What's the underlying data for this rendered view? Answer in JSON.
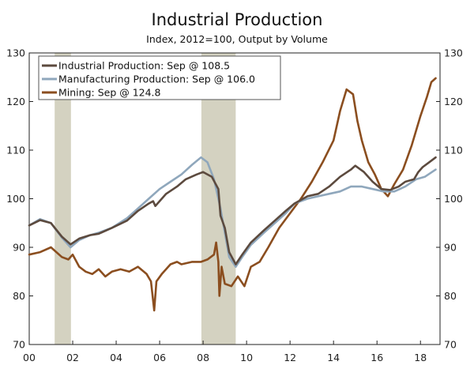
{
  "chart_data": {
    "type": "line",
    "title": "Industrial Production",
    "subtitle": "Index, 2012=100, Output by Volume",
    "xlabel": "",
    "ylabel": "",
    "xlim": [
      2000.0,
      2018.9
    ],
    "ylim": [
      70,
      130
    ],
    "x_ticks": [
      2000,
      2002,
      2004,
      2006,
      2008,
      2010,
      2012,
      2014,
      2016,
      2018
    ],
    "x_tick_labels": [
      "00",
      "02",
      "04",
      "06",
      "08",
      "10",
      "12",
      "14",
      "16",
      "18"
    ],
    "y_ticks": [
      70,
      80,
      90,
      100,
      110,
      120,
      130
    ],
    "y_tick_labels": [
      "70",
      "80",
      "90",
      "100",
      "110",
      "120",
      "130"
    ],
    "right_axis": true,
    "grid": false,
    "legend_position": "top-left",
    "recessions": [
      [
        2001.17,
        2001.92
      ],
      [
        2007.92,
        2009.5
      ]
    ],
    "recession_color": "#d4d2c1",
    "series": [
      {
        "name": "Industrial Production: Sep @ 108.5",
        "color": "#5c4a3e",
        "x": [
          2000.0,
          2000.5,
          2001.0,
          2001.5,
          2001.9,
          2002.3,
          2002.8,
          2003.2,
          2003.8,
          2004.5,
          2005.0,
          2005.5,
          2005.7,
          2005.8,
          2006.3,
          2006.8,
          2007.2,
          2007.7,
          2008.0,
          2008.4,
          2008.7,
          2008.8,
          2009.0,
          2009.2,
          2009.5,
          2009.8,
          2010.2,
          2010.8,
          2011.3,
          2011.8,
          2012.2,
          2012.8,
          2013.3,
          2013.8,
          2014.3,
          2014.8,
          2015.0,
          2015.4,
          2015.8,
          2016.2,
          2016.6,
          2017.0,
          2017.3,
          2017.7,
          2017.9,
          2018.1,
          2018.4,
          2018.7
        ],
        "values": [
          94.5,
          95.6,
          95.0,
          92.2,
          90.6,
          91.8,
          92.5,
          92.8,
          94.0,
          95.5,
          97.5,
          99.0,
          99.5,
          98.5,
          101.0,
          102.5,
          104.0,
          105.0,
          105.5,
          104.5,
          102.0,
          96.5,
          94.0,
          89.0,
          86.5,
          88.5,
          91.0,
          93.5,
          95.5,
          97.5,
          99.0,
          100.5,
          101.0,
          102.5,
          104.5,
          106.0,
          106.8,
          105.5,
          103.5,
          102.0,
          101.8,
          102.5,
          103.5,
          104.0,
          105.5,
          106.5,
          107.5,
          108.5
        ]
      },
      {
        "name": "Manufacturing Production: Sep @ 106.0",
        "color": "#8fa7bc",
        "x": [
          2000.0,
          2000.5,
          2001.0,
          2001.5,
          2001.9,
          2002.3,
          2002.8,
          2003.2,
          2003.8,
          2004.5,
          2005.0,
          2005.5,
          2006.0,
          2006.5,
          2007.0,
          2007.5,
          2007.9,
          2008.2,
          2008.5,
          2008.8,
          2009.0,
          2009.2,
          2009.5,
          2009.8,
          2010.2,
          2010.8,
          2011.3,
          2011.8,
          2012.2,
          2012.8,
          2013.3,
          2013.8,
          2014.3,
          2014.8,
          2015.3,
          2015.8,
          2016.3,
          2016.8,
          2017.3,
          2017.8,
          2018.2,
          2018.7
        ],
        "values": [
          94.5,
          95.8,
          95.0,
          92.0,
          90.0,
          91.5,
          92.5,
          93.0,
          94.0,
          96.0,
          98.0,
          100.0,
          102.0,
          103.5,
          105.0,
          107.0,
          108.5,
          107.5,
          104.0,
          98.0,
          93.0,
          88.0,
          86.0,
          88.0,
          90.5,
          93.0,
          95.0,
          97.0,
          99.0,
          100.0,
          100.5,
          101.0,
          101.5,
          102.5,
          102.5,
          102.0,
          101.5,
          101.5,
          102.5,
          104.0,
          104.5,
          106.0
        ]
      },
      {
        "name": "Mining: Sep @ 124.8",
        "color": "#8b4e1f",
        "x": [
          2000.0,
          2000.5,
          2001.0,
          2001.5,
          2001.8,
          2002.0,
          2002.3,
          2002.6,
          2002.9,
          2003.2,
          2003.5,
          2003.8,
          2004.2,
          2004.6,
          2005.0,
          2005.4,
          2005.6,
          2005.75,
          2005.85,
          2006.1,
          2006.5,
          2006.8,
          2007.0,
          2007.5,
          2007.9,
          2008.2,
          2008.5,
          2008.6,
          2008.7,
          2008.75,
          2008.85,
          2009.0,
          2009.3,
          2009.6,
          2009.9,
          2010.2,
          2010.6,
          2011.0,
          2011.5,
          2012.0,
          2012.5,
          2013.0,
          2013.5,
          2014.0,
          2014.3,
          2014.6,
          2014.9,
          2015.1,
          2015.3,
          2015.6,
          2015.9,
          2016.2,
          2016.5,
          2016.8,
          2017.2,
          2017.6,
          2018.0,
          2018.3,
          2018.5,
          2018.7
        ],
        "values": [
          88.5,
          89.0,
          90.0,
          88.0,
          87.5,
          88.5,
          86.0,
          85.0,
          84.5,
          85.5,
          84.0,
          85.0,
          85.5,
          85.0,
          86.0,
          84.5,
          83.0,
          77.0,
          83.0,
          84.5,
          86.5,
          87.0,
          86.5,
          87.0,
          87.0,
          87.5,
          88.5,
          91.0,
          87.0,
          80.0,
          86.0,
          82.5,
          82.0,
          84.0,
          82.0,
          86.0,
          87.0,
          90.0,
          94.0,
          97.0,
          100.0,
          103.5,
          107.5,
          112.0,
          118.0,
          122.5,
          121.5,
          116.0,
          112.0,
          107.5,
          105.0,
          102.0,
          100.5,
          103.0,
          106.0,
          111.0,
          117.0,
          121.0,
          124.0,
          124.8
        ]
      }
    ]
  }
}
